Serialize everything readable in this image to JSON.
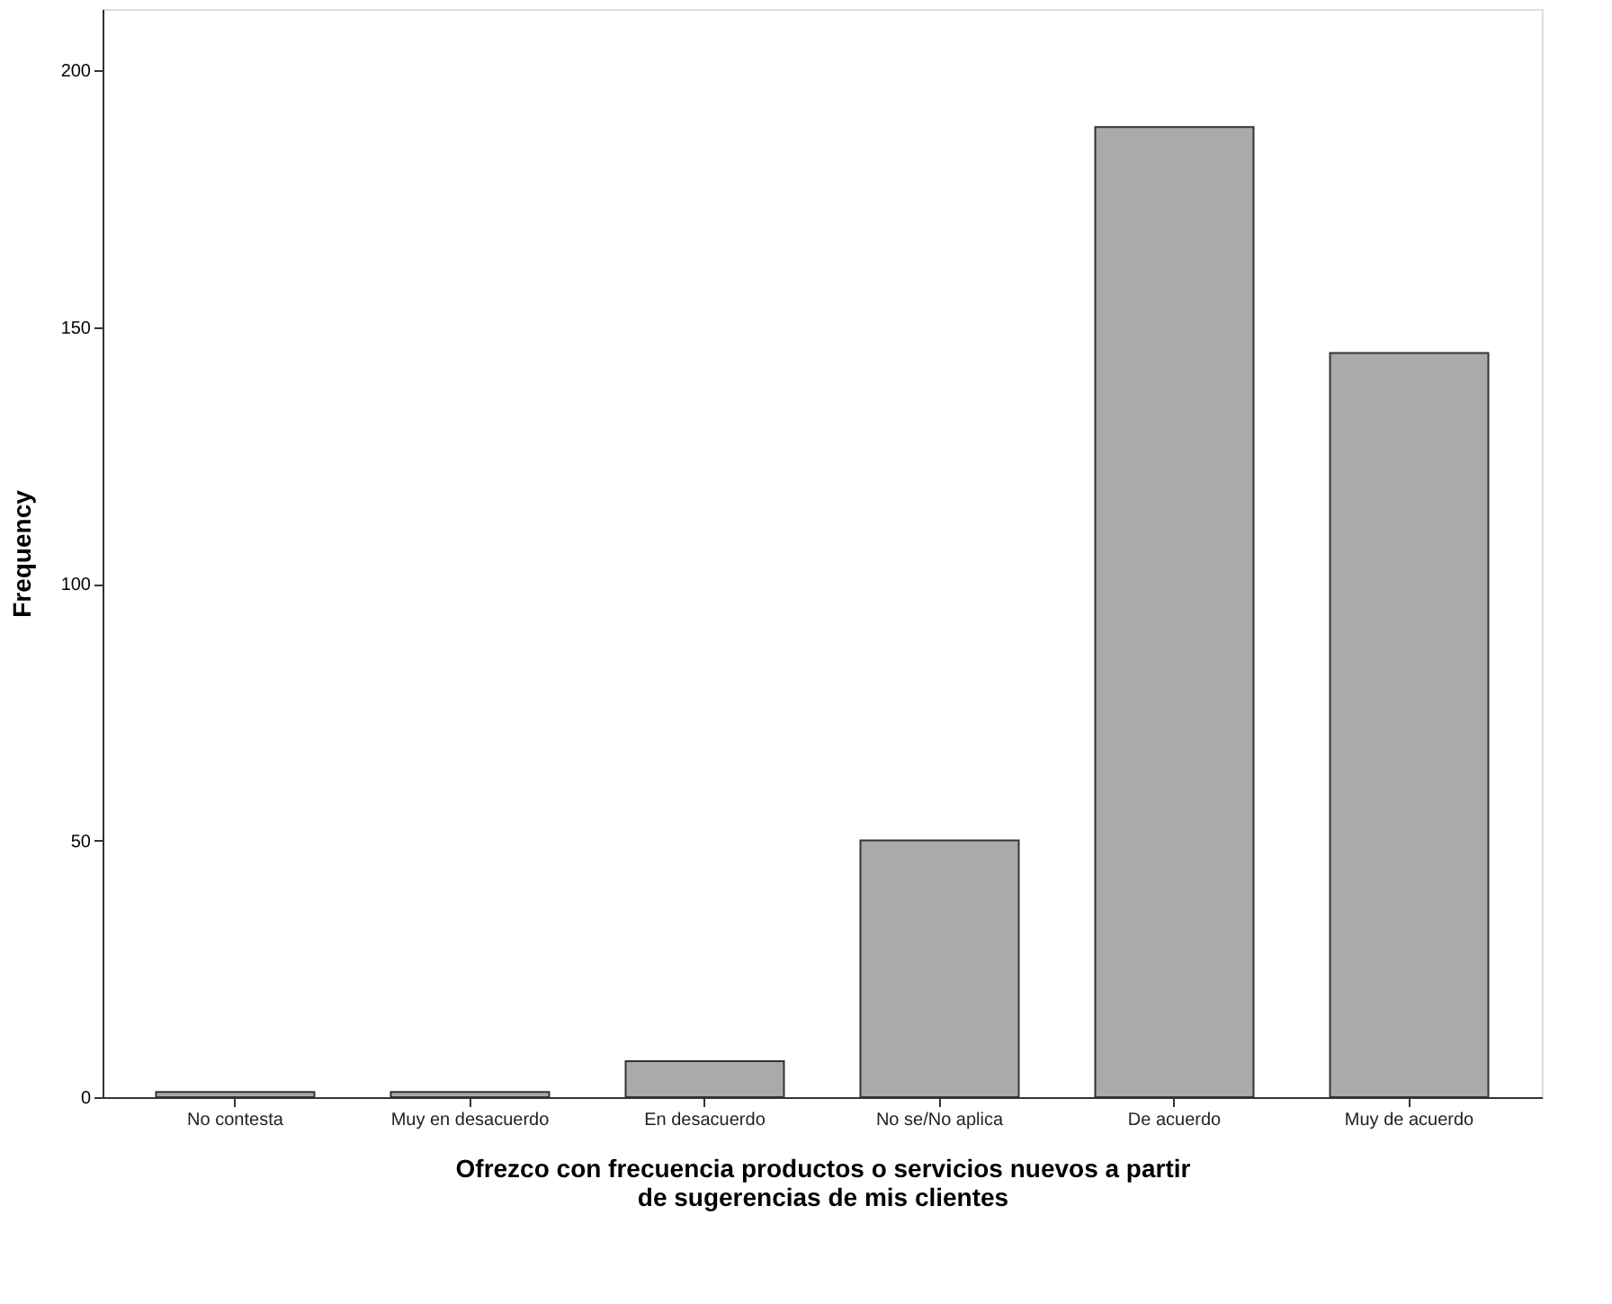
{
  "chart_data": {
    "type": "bar",
    "xlabel": "Ofrezco con frecuencia productos o servicios nuevos a partir de sugerencias de mis clientes",
    "ylabel": "Frequency",
    "categories": [
      "No contesta",
      "Muy en desacuerdo",
      "En desacuerdo",
      "No se/No aplica",
      "De acuerdo",
      "Muy de acuerdo"
    ],
    "values": [
      1,
      1,
      7,
      50,
      189,
      145
    ],
    "color": "#aaaaaa",
    "ylim": [
      0,
      212
    ],
    "yticks": [
      0,
      50,
      100,
      150,
      200
    ],
    "grid": false
  }
}
